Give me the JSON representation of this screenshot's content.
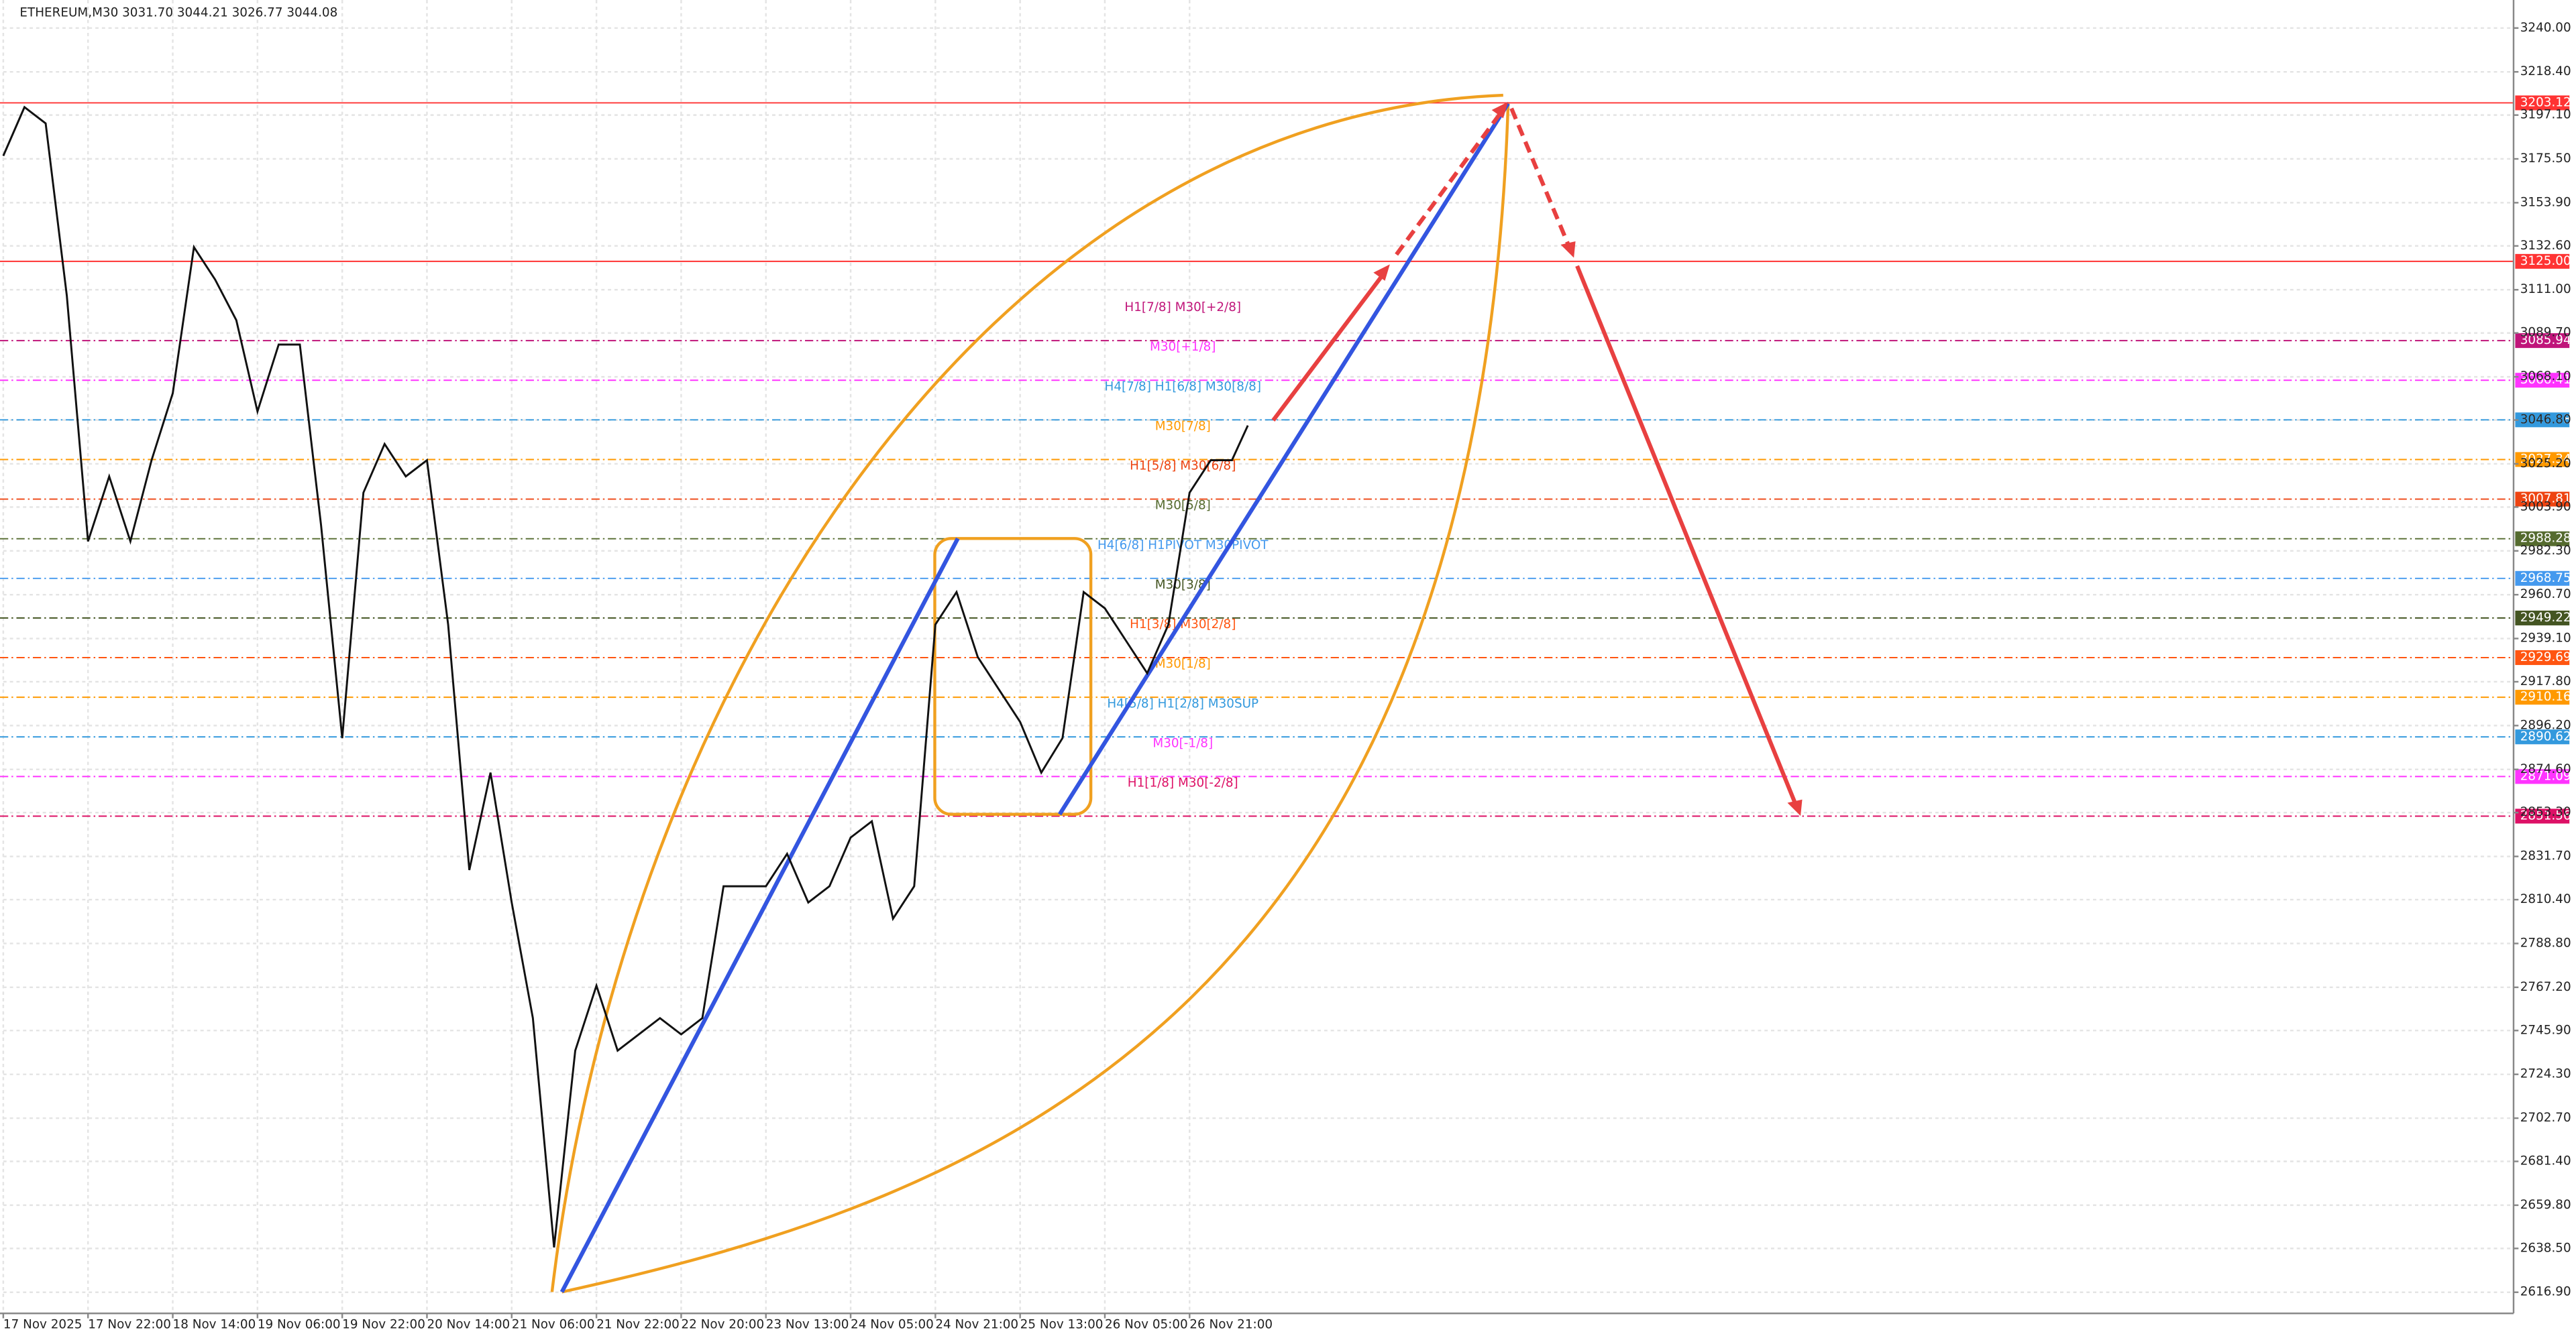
{
  "chart_data": {
    "type": "line",
    "title": "ETHEREUM,M30  3031.70 3044.21 3026.77 3044.08",
    "color": "#111111",
    "grid": true,
    "x": [
      0,
      8,
      16,
      24,
      32,
      40,
      48,
      56,
      64,
      72,
      80,
      88,
      96,
      104,
      112,
      120,
      128,
      136,
      144,
      152,
      160,
      168,
      176,
      184,
      192,
      200,
      208,
      216,
      224,
      232,
      240,
      248,
      256,
      264,
      272,
      280,
      288,
      296,
      304,
      312,
      320,
      328,
      336,
      344,
      352,
      360,
      368,
      376,
      384,
      392,
      400,
      408,
      416,
      424,
      432,
      440,
      448,
      456,
      464,
      470
    ],
    "values": [
      3177,
      3201,
      3193,
      3108,
      2987,
      3019,
      2987,
      3027,
      3060,
      3132,
      3116,
      3096,
      3051,
      3084,
      3084,
      2995,
      2890,
      3011,
      3035,
      3019,
      3027,
      2946,
      2825,
      2873,
      2809,
      2752,
      2639,
      2736,
      2768,
      2736,
      2744,
      2752,
      2744,
      2752,
      2817,
      2817,
      2817,
      2833,
      2809,
      2817,
      2841,
      2849,
      2801,
      2817,
      2946,
      2962,
      2930,
      2914,
      2898,
      2873,
      2890,
      2962,
      2954,
      2938,
      2922,
      2946,
      3011,
      3027,
      3027,
      3044.08
    ],
    "xlim": [
      0,
      948
    ],
    "xticks": [
      {
        "value": 0,
        "label": "17 Nov 2025"
      },
      {
        "value": 32,
        "label": "17 Nov 22:00"
      },
      {
        "value": 64,
        "label": "18 Nov 14:00"
      },
      {
        "value": 96,
        "label": "19 Nov 06:00"
      },
      {
        "value": 128,
        "label": "19 Nov 22:00"
      },
      {
        "value": 160,
        "label": "20 Nov 14:00"
      },
      {
        "value": 192,
        "label": "21 Nov 06:00"
      },
      {
        "value": 224,
        "label": "21 Nov 22:00"
      },
      {
        "value": 256,
        "label": "22 Nov 20:00"
      },
      {
        "value": 288,
        "label": "23 Nov 13:00"
      },
      {
        "value": 320,
        "label": "24 Nov 05:00"
      },
      {
        "value": 352,
        "label": "24 Nov 21:00"
      },
      {
        "value": 384,
        "label": "25 Nov 13:00"
      },
      {
        "value": 416,
        "label": "26 Nov 05:00"
      },
      {
        "value": 448,
        "label": "26 Nov 21:00"
      }
    ],
    "ylim": [
      2606.5,
      3253.8
    ],
    "yticks": [
      {
        "value": 3240,
        "label": "3240.00"
      },
      {
        "value": 3218.4,
        "label": "3218.40"
      },
      {
        "value": 3197.1,
        "label": "3197.10"
      },
      {
        "value": 3175.5,
        "label": "3175.50"
      },
      {
        "value": 3153.9,
        "label": "3153.90"
      },
      {
        "value": 3132.6,
        "label": "3132.60"
      },
      {
        "value": 3111,
        "label": "3111.00"
      },
      {
        "value": 3089.7,
        "label": "3089.70"
      },
      {
        "value": 3068.1,
        "label": "3068.10"
      },
      {
        "value": 3046.8,
        "label": "3046.80"
      },
      {
        "value": 3025.2,
        "label": "3025.20"
      },
      {
        "value": 3003.9,
        "label": "3003.90"
      },
      {
        "value": 2982.3,
        "label": "2982.30"
      },
      {
        "value": 2960.7,
        "label": "2960.70"
      },
      {
        "value": 2939.1,
        "label": "2939.10"
      },
      {
        "value": 2917.8,
        "label": "2917.80"
      },
      {
        "value": 2896.2,
        "label": "2896.20"
      },
      {
        "value": 2874.6,
        "label": "2874.60"
      },
      {
        "value": 2853.3,
        "label": "2853.30"
      },
      {
        "value": 2831.7,
        "label": "2831.70"
      },
      {
        "value": 2810.4,
        "label": "2810.40"
      },
      {
        "value": 2788.8,
        "label": "2788.80"
      },
      {
        "value": 2767.2,
        "label": "2767.20"
      },
      {
        "value": 2745.9,
        "label": "2745.90"
      },
      {
        "value": 2724.3,
        "label": "2724.30"
      },
      {
        "value": 2702.7,
        "label": "2702.70"
      },
      {
        "value": 2681.4,
        "label": "2681.40"
      },
      {
        "value": 2659.8,
        "label": "2659.80"
      },
      {
        "value": 2638.5,
        "label": "2638.50"
      },
      {
        "value": 2616.9,
        "label": "2616.90"
      }
    ],
    "levels": [
      {
        "value": 3203.12,
        "color": "#ff3333",
        "line_style": "solid"
      },
      {
        "value": 3125,
        "value_label": "3125.00",
        "color": "#ff3333",
        "line_style": "solid"
      },
      {
        "value": 3085.94,
        "name": "H1[7/8] M30[+2/8]",
        "color": "#c0157a",
        "line_style": "dash"
      },
      {
        "value": 3066.41,
        "name": "M30[+1/8]",
        "color": "#ff33ff",
        "line_style": "dash"
      },
      {
        "value": 3046.88,
        "name": "H4[7/8] H1[6/8] M30[8/8]",
        "color": "#3399dd",
        "line_style": "dash"
      },
      {
        "value": 3027.34,
        "name": "M30[7/8]",
        "color": "#ff9900",
        "line_style": "dash"
      },
      {
        "value": 3007.81,
        "name": "H1[5/8] M30[6/8]",
        "color": "#ee4411",
        "line_style": "dash"
      },
      {
        "value": 2988.28,
        "name": "M30[5/8]",
        "color": "#556b2f",
        "line_style": "dash"
      },
      {
        "value": 2968.75,
        "name": "H4[6/8] H1PIVOT M30PIVOT",
        "color": "#4499ee",
        "line_style": "dash"
      },
      {
        "value": 2949.22,
        "name": "M30[3/8]",
        "color": "#445522",
        "line_style": "dash"
      },
      {
        "value": 2929.69,
        "name": "H1[3/8] M30[2/8]",
        "color": "#ff5511",
        "line_style": "dash"
      },
      {
        "value": 2910.16,
        "name": "M30[1/8]",
        "color": "#ff9900",
        "line_style": "dash"
      },
      {
        "value": 2890.62,
        "name": "H4[5/8] H1[2/8] M30SUP",
        "color": "#3399dd",
        "line_style": "dash"
      },
      {
        "value": 2871.09,
        "name": "M30[-1/8]",
        "color": "#ff33ff",
        "line_style": "dash"
      },
      {
        "value": 2851.56,
        "name": "H1[1/8] M30[-2/8]",
        "color": "#dd1166",
        "line_style": "dash"
      }
    ]
  }
}
